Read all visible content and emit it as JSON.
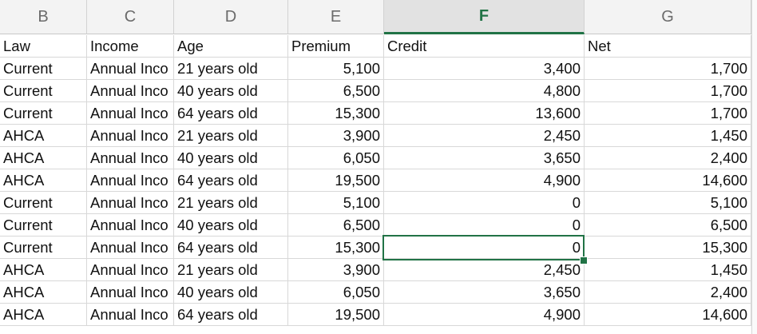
{
  "columns": [
    {
      "letter": "B",
      "selected": false
    },
    {
      "letter": "C",
      "selected": false
    },
    {
      "letter": "D",
      "selected": false
    },
    {
      "letter": "E",
      "selected": false
    },
    {
      "letter": "F",
      "selected": true
    },
    {
      "letter": "G",
      "selected": false
    }
  ],
  "rows": [
    {
      "law": "Law",
      "income": "Income",
      "age": "Age",
      "premium": "Premium",
      "credit": "Credit",
      "net": "Net",
      "header": true
    },
    {
      "law": "Current",
      "income": "Annual Inco",
      "age": "21 years old",
      "premium": "5,100",
      "credit": "3,400",
      "net": "1,700"
    },
    {
      "law": "Current",
      "income": "Annual Inco",
      "age": "40 years old",
      "premium": "6,500",
      "credit": "4,800",
      "net": "1,700"
    },
    {
      "law": "Current",
      "income": "Annual Inco",
      "age": "64 years old",
      "premium": "15,300",
      "credit": "13,600",
      "net": "1,700"
    },
    {
      "law": "AHCA",
      "income": "Annual Inco",
      "age": "21 years old",
      "premium": "3,900",
      "credit": "2,450",
      "net": "1,450"
    },
    {
      "law": "AHCA",
      "income": "Annual Inco",
      "age": "40 years old",
      "premium": "6,050",
      "credit": "3,650",
      "net": "2,400"
    },
    {
      "law": "AHCA",
      "income": "Annual Inco",
      "age": "64 years old",
      "premium": "19,500",
      "credit": "4,900",
      "net": "14,600"
    },
    {
      "law": "Current",
      "income": "Annual Inco",
      "age": "21 years old",
      "premium": "5,100",
      "credit": "0",
      "net": "5,100"
    },
    {
      "law": "Current",
      "income": "Annual Inco",
      "age": "40 years old",
      "premium": "6,500",
      "credit": "0",
      "net": "6,500"
    },
    {
      "law": "Current",
      "income": "Annual Inco",
      "age": "64 years old",
      "premium": "15,300",
      "credit": "0",
      "net": "15,300"
    },
    {
      "law": "AHCA",
      "income": "Annual Inco",
      "age": "21 years old",
      "premium": "3,900",
      "credit": "2,450",
      "net": "1,450"
    },
    {
      "law": "AHCA",
      "income": "Annual Inco",
      "age": "40 years old",
      "premium": "6,050",
      "credit": "3,650",
      "net": "2,400"
    },
    {
      "law": "AHCA",
      "income": "Annual Inco",
      "age": "64 years old",
      "premium": "19,500",
      "credit": "4,900",
      "net": "14,600"
    }
  ],
  "selection": {
    "cell": "F10",
    "accent": "#217346"
  }
}
